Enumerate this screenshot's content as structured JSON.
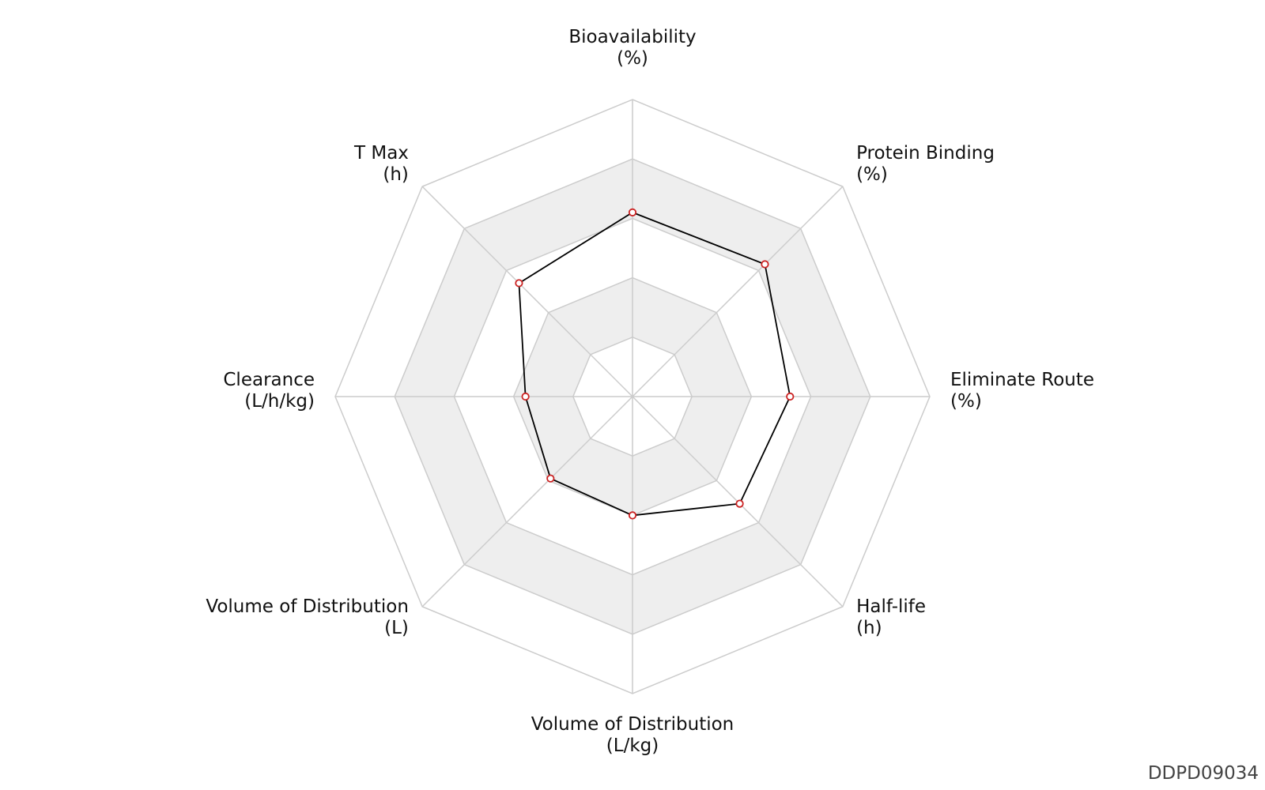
{
  "chart_data": {
    "type": "radar",
    "axes": [
      {
        "name": "Bioavailability",
        "unit": "(%)",
        "value": 0.62
      },
      {
        "name": "Protein Binding",
        "unit": "(%)",
        "value": 0.63
      },
      {
        "name": "Eliminate Route",
        "unit": "(%)",
        "value": 0.53
      },
      {
        "name": "Half-life",
        "unit": "(h)",
        "value": 0.51
      },
      {
        "name": "Volume of Distribution",
        "unit": "(L/kg)",
        "value": 0.4
      },
      {
        "name": "Volume of Distribution",
        "unit": "(L)",
        "value": 0.39
      },
      {
        "name": "Clearance",
        "unit": "(L/h/kg)",
        "value": 0.36
      },
      {
        "name": "T Max",
        "unit": "(h)",
        "value": 0.54
      }
    ],
    "range": [
      0,
      1
    ],
    "rings": 5,
    "colors": {
      "grid": "#cccccc",
      "band": "#eeeeee",
      "line": "#000000",
      "marker": "#cc2222"
    }
  },
  "footer": {
    "id": "DDPD09034"
  }
}
